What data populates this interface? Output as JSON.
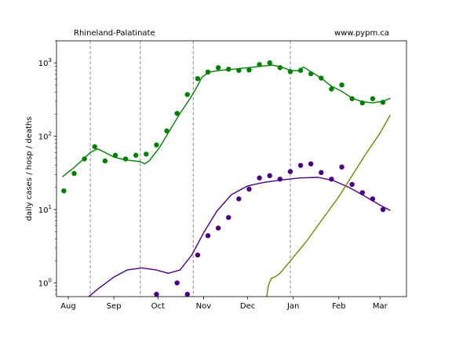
{
  "header": {
    "left": "Rhineland-Palatinate",
    "right": "www.pypm.ca"
  },
  "chart_data": {
    "type": "scatter",
    "title": "",
    "xlabel": "",
    "ylabel": "daily cases / hosp / deaths",
    "yscale": "log",
    "ylim": [
      0.65,
      2000
    ],
    "xlim": [
      "2020-07-24",
      "2021-03-19"
    ],
    "x_ticks": [
      {
        "date": "2020-08-01",
        "label": "Aug"
      },
      {
        "date": "2020-09-01",
        "label": "Sep"
      },
      {
        "date": "2020-10-01",
        "label": "Oct"
      },
      {
        "date": "2020-11-01",
        "label": "Nov"
      },
      {
        "date": "2020-12-01",
        "label": "Dec"
      },
      {
        "date": "2021-01-01",
        "label": "Jan"
      },
      {
        "date": "2021-02-01",
        "label": "Feb"
      },
      {
        "date": "2021-03-01",
        "label": "Mar"
      }
    ],
    "y_ticks": [
      {
        "value": 1,
        "label": "10^0"
      },
      {
        "value": 10,
        "label": "10^1"
      },
      {
        "value": 100,
        "label": "10^2"
      },
      {
        "value": 1000,
        "label": "10^3"
      }
    ],
    "vlines": [
      "2020-08-16",
      "2020-09-19",
      "2020-10-25",
      "2020-12-30"
    ],
    "grid": false,
    "colors": {
      "cases": "#008000",
      "deaths": "#4b0082",
      "third": "#808000",
      "vline": "#808080"
    },
    "series": [
      {
        "kind": "points",
        "color": "#008000",
        "points": [
          [
            "2020-07-29",
            18
          ],
          [
            "2020-08-05",
            31
          ],
          [
            "2020-08-12",
            49
          ],
          [
            "2020-08-19",
            72
          ],
          [
            "2020-08-26",
            46
          ],
          [
            "2020-09-02",
            55
          ],
          [
            "2020-09-09",
            49
          ],
          [
            "2020-09-16",
            55
          ],
          [
            "2020-09-23",
            57
          ],
          [
            "2020-09-30",
            76
          ],
          [
            "2020-10-07",
            118
          ],
          [
            "2020-10-14",
            205
          ],
          [
            "2020-10-21",
            370
          ],
          [
            "2020-10-28",
            610
          ],
          [
            "2020-11-04",
            750
          ],
          [
            "2020-11-11",
            860
          ],
          [
            "2020-11-18",
            820
          ],
          [
            "2020-11-25",
            790
          ],
          [
            "2020-12-02",
            800
          ],
          [
            "2020-12-09",
            950
          ],
          [
            "2020-12-16",
            1000
          ],
          [
            "2020-12-23",
            860
          ],
          [
            "2020-12-30",
            760
          ],
          [
            "2021-01-06",
            790
          ],
          [
            "2021-01-13",
            710
          ],
          [
            "2021-01-20",
            620
          ],
          [
            "2021-01-27",
            440
          ],
          [
            "2021-02-03",
            500
          ],
          [
            "2021-02-10",
            325
          ],
          [
            "2021-02-17",
            285
          ],
          [
            "2021-02-24",
            325
          ],
          [
            "2021-03-03",
            290
          ]
        ]
      },
      {
        "kind": "points",
        "color": "#4b0082",
        "points": [
          [
            "2020-09-30",
            0.7
          ],
          [
            "2020-10-14",
            1.0
          ],
          [
            "2020-10-21",
            0.7
          ],
          [
            "2020-10-28",
            2.4
          ],
          [
            "2020-11-04",
            4.4
          ],
          [
            "2020-11-11",
            5.6
          ],
          [
            "2020-11-18",
            7.8
          ],
          [
            "2020-11-25",
            14
          ],
          [
            "2020-12-02",
            19
          ],
          [
            "2020-12-09",
            27
          ],
          [
            "2020-12-16",
            29
          ],
          [
            "2020-12-23",
            26
          ],
          [
            "2020-12-30",
            33
          ],
          [
            "2021-01-06",
            40
          ],
          [
            "2021-01-13",
            42
          ],
          [
            "2021-01-20",
            32
          ],
          [
            "2021-01-27",
            26
          ],
          [
            "2021-02-03",
            38
          ],
          [
            "2021-02-10",
            22
          ],
          [
            "2021-02-17",
            17
          ],
          [
            "2021-02-24",
            14
          ],
          [
            "2021-03-03",
            10
          ]
        ]
      },
      {
        "kind": "line",
        "color": "#008000",
        "points": [
          [
            "2020-07-28",
            28
          ],
          [
            "2020-08-04",
            36
          ],
          [
            "2020-08-11",
            48
          ],
          [
            "2020-08-16",
            60
          ],
          [
            "2020-08-21",
            67
          ],
          [
            "2020-08-26",
            60
          ],
          [
            "2020-09-01",
            52
          ],
          [
            "2020-09-08",
            48
          ],
          [
            "2020-09-15",
            46
          ],
          [
            "2020-09-19",
            45
          ],
          [
            "2020-09-22",
            42
          ],
          [
            "2020-09-25",
            46
          ],
          [
            "2020-10-02",
            70
          ],
          [
            "2020-10-09",
            120
          ],
          [
            "2020-10-16",
            205
          ],
          [
            "2020-10-23",
            330
          ],
          [
            "2020-10-27",
            450
          ],
          [
            "2020-10-31",
            640
          ],
          [
            "2020-11-05",
            750
          ],
          [
            "2020-11-12",
            790
          ],
          [
            "2020-11-20",
            815
          ],
          [
            "2020-12-01",
            860
          ],
          [
            "2020-12-10",
            900
          ],
          [
            "2020-12-18",
            930
          ],
          [
            "2020-12-24",
            880
          ],
          [
            "2020-12-30",
            790
          ],
          [
            "2021-01-04",
            780
          ],
          [
            "2021-01-08",
            880
          ],
          [
            "2021-01-13",
            760
          ],
          [
            "2021-01-20",
            620
          ],
          [
            "2021-01-27",
            480
          ],
          [
            "2021-02-03",
            410
          ],
          [
            "2021-02-10",
            330
          ],
          [
            "2021-02-17",
            295
          ],
          [
            "2021-02-24",
            285
          ],
          [
            "2021-03-03",
            300
          ],
          [
            "2021-03-08",
            330
          ]
        ]
      },
      {
        "kind": "line",
        "color": "#4b0082",
        "points": [
          [
            "2020-08-15",
            0.65
          ],
          [
            "2020-08-22",
            0.85
          ],
          [
            "2020-09-01",
            1.2
          ],
          [
            "2020-09-10",
            1.5
          ],
          [
            "2020-09-20",
            1.6
          ],
          [
            "2020-09-30",
            1.5
          ],
          [
            "2020-10-08",
            1.35
          ],
          [
            "2020-10-16",
            1.5
          ],
          [
            "2020-10-24",
            2.4
          ],
          [
            "2020-11-01",
            4.8
          ],
          [
            "2020-11-10",
            9.5
          ],
          [
            "2020-11-20",
            16
          ],
          [
            "2020-12-01",
            21
          ],
          [
            "2020-12-12",
            23.5
          ],
          [
            "2020-12-25",
            25.5
          ],
          [
            "2021-01-06",
            27
          ],
          [
            "2021-01-18",
            27.5
          ],
          [
            "2021-01-28",
            25
          ],
          [
            "2021-02-08",
            20
          ],
          [
            "2021-02-18",
            15.5
          ],
          [
            "2021-03-01",
            11.5
          ],
          [
            "2021-03-08",
            9.7
          ]
        ]
      },
      {
        "kind": "line",
        "color": "#808000",
        "points": [
          [
            "2020-12-14",
            0.65
          ],
          [
            "2020-12-15",
            0.9
          ],
          [
            "2020-12-17",
            1.15
          ],
          [
            "2020-12-20",
            1.22
          ],
          [
            "2020-12-23",
            1.35
          ],
          [
            "2020-12-30",
            2.0
          ],
          [
            "2021-01-10",
            3.7
          ],
          [
            "2021-01-20",
            7.0
          ],
          [
            "2021-02-01",
            15
          ],
          [
            "2021-02-10",
            29
          ],
          [
            "2021-02-20",
            60
          ],
          [
            "2021-03-01",
            110
          ],
          [
            "2021-03-08",
            195
          ]
        ]
      }
    ]
  }
}
